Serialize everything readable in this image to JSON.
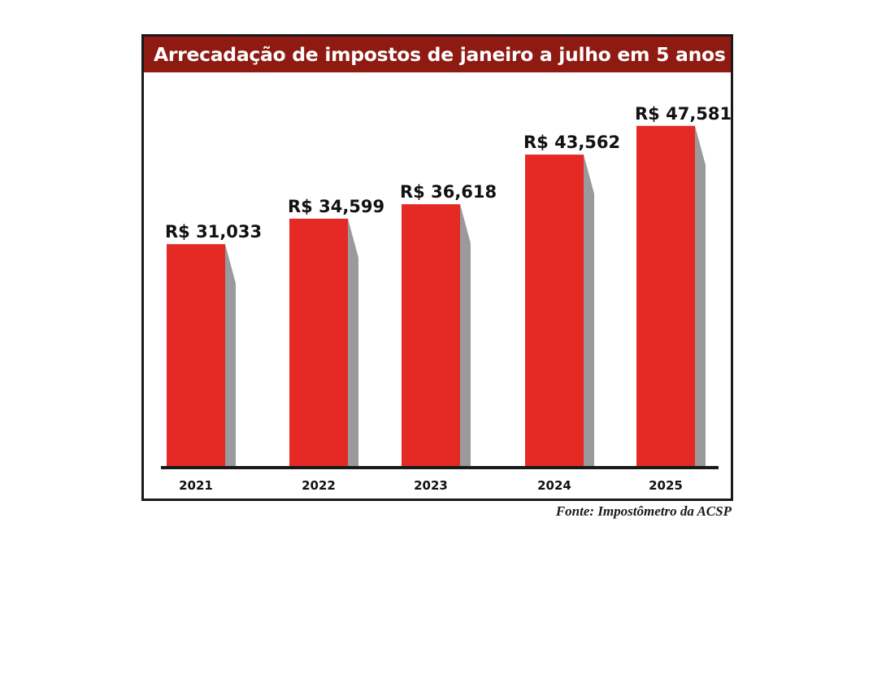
{
  "chart_data": {
    "type": "bar",
    "title": "Arrecadação de impostos de janeiro a julho em 5 anos",
    "categories": [
      "2021",
      "2022",
      "2023",
      "2024",
      "2025"
    ],
    "values": [
      31.033,
      34.599,
      36.618,
      43.562,
      47.581
    ],
    "value_labels": [
      "R$ 31,033",
      "R$ 34,599",
      "R$ 36,618",
      "R$ 43,562",
      "R$ 47,581"
    ],
    "ylim": [
      0,
      50
    ],
    "grid": false,
    "legend": "none",
    "source": "Fonte: Impostômetro da ACSP"
  },
  "colors": {
    "bar": "#e52a25",
    "bar_shadow": "#9a9a9c",
    "title_bar": "#8e1a12",
    "axis": "#1a1a1a"
  }
}
